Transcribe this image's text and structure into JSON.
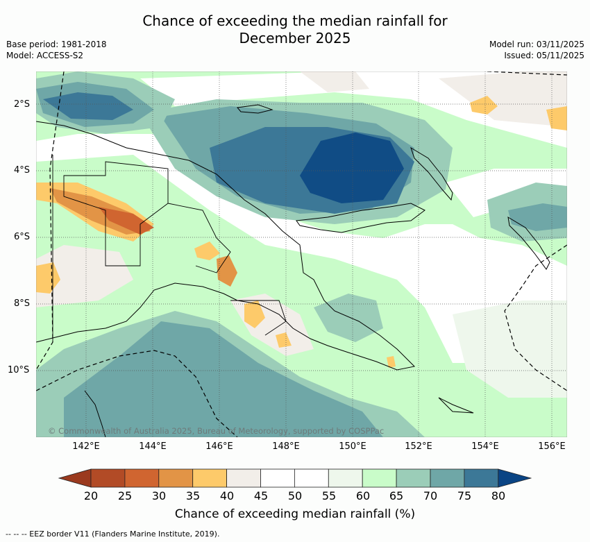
{
  "header": {
    "title_line1": "Chance of exceeding the median rainfall for",
    "title_line2": "December 2025",
    "base_period": "Base period: 1981-2018",
    "model": "Model: ACCESS-S2",
    "model_run": "Model run: 03/11/2025",
    "issued": "Issued: 05/11/2025"
  },
  "map": {
    "lat_labels": [
      "2°S",
      "4°S",
      "6°S",
      "8°S",
      "10°S"
    ],
    "lon_labels": [
      "142°E",
      "144°E",
      "146°E",
      "148°E",
      "150°E",
      "152°E",
      "154°E",
      "156°E"
    ],
    "copyright": "© Commonwealth of Australia 2025, Bureau of Meteorology, supported by COSPPac",
    "colors": {
      "ocean_base": "#c9fcc9",
      "coast": "#000000",
      "border": "#000000",
      "grid": "#555555"
    }
  },
  "colorbar": {
    "ticks": [
      "20",
      "25",
      "30",
      "35",
      "40",
      "45",
      "50",
      "55",
      "60",
      "65",
      "70",
      "75",
      "80"
    ],
    "colors": [
      "#b24b26",
      "#d06530",
      "#e29446",
      "#fdca6a",
      "#f2eee9",
      "#ffffff",
      "#ffffff",
      "#eef7ec",
      "#c9fcc9",
      "#9bcdb8",
      "#6fa7a7",
      "#3c7897",
      "#104c85"
    ],
    "under_color": "#9b3a1e",
    "over_color": "#0a4484",
    "label": "Chance of exceeding median rainfall (%)"
  },
  "legend": {
    "eez": "--  --  -- EEZ border V11 (Flanders Marine Institute, 2019)."
  }
}
